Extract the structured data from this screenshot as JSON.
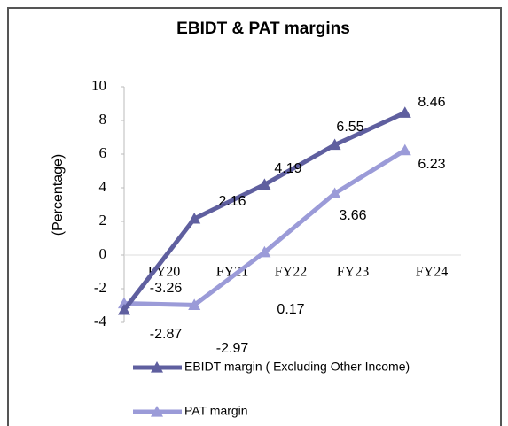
{
  "chart_data": {
    "type": "line",
    "title": "EBIDT & PAT margins",
    "y_label": "(Percentage)",
    "categories": [
      "FY20",
      "FY21",
      "FY22",
      "FY23",
      "FY24"
    ],
    "series": [
      {
        "name": "EBIDT margin ( Excluding Other Income)",
        "color": "#5f5f9f",
        "values": [
          -3.26,
          2.16,
          4.19,
          6.55,
          8.46
        ]
      },
      {
        "name": "PAT margin",
        "color": "#9b9bd8",
        "values": [
          -2.87,
          -2.97,
          0.17,
          3.66,
          6.23
        ]
      }
    ],
    "ylim": [
      -4,
      10
    ],
    "yticks": [
      -4,
      -2,
      0,
      2,
      4,
      6,
      8,
      10
    ]
  }
}
